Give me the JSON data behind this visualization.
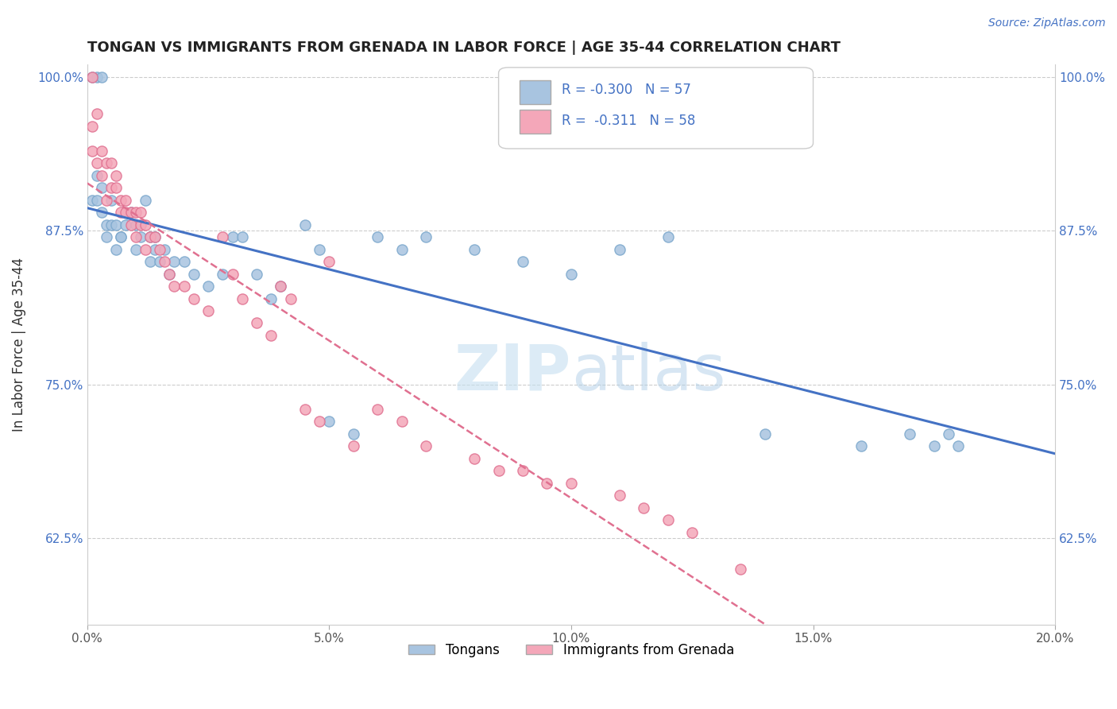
{
  "title": "TONGAN VS IMMIGRANTS FROM GRENADA IN LABOR FORCE | AGE 35-44 CORRELATION CHART",
  "source_text": "Source: ZipAtlas.com",
  "ylabel": "In Labor Force | Age 35-44",
  "xlim": [
    0.0,
    0.2
  ],
  "ylim": [
    0.555,
    1.01
  ],
  "xtick_labels": [
    "0.0%",
    "5.0%",
    "10.0%",
    "15.0%",
    "20.0%"
  ],
  "xtick_vals": [
    0.0,
    0.05,
    0.1,
    0.15,
    0.2
  ],
  "ytick_labels": [
    "62.5%",
    "75.0%",
    "87.5%",
    "100.0%"
  ],
  "ytick_vals": [
    0.625,
    0.75,
    0.875,
    1.0
  ],
  "watermark_zip": "ZIP",
  "watermark_atlas": "atlas",
  "series1_color": "#a8c4e0",
  "series1_edge": "#7ba7cc",
  "series2_color": "#f4a7b9",
  "series2_edge": "#e07090",
  "trendline1_color": "#4472c4",
  "trendline2_color": "#e07090",
  "series1_x": [
    0.002,
    0.003,
    0.001,
    0.001,
    0.002,
    0.003,
    0.004,
    0.002,
    0.003,
    0.004,
    0.005,
    0.005,
    0.006,
    0.007,
    0.006,
    0.007,
    0.008,
    0.009,
    0.01,
    0.01,
    0.011,
    0.012,
    0.013,
    0.014,
    0.013,
    0.014,
    0.015,
    0.016,
    0.017,
    0.018,
    0.02,
    0.022,
    0.025,
    0.028,
    0.03,
    0.032,
    0.035,
    0.038,
    0.04,
    0.045,
    0.048,
    0.05,
    0.055,
    0.06,
    0.065,
    0.07,
    0.08,
    0.09,
    0.1,
    0.11,
    0.12,
    0.14,
    0.16,
    0.17,
    0.175,
    0.178,
    0.18
  ],
  "series1_y": [
    1.0,
    1.0,
    1.0,
    0.9,
    0.92,
    0.91,
    0.88,
    0.9,
    0.89,
    0.87,
    0.88,
    0.9,
    0.88,
    0.87,
    0.86,
    0.87,
    0.88,
    0.89,
    0.88,
    0.86,
    0.87,
    0.9,
    0.87,
    0.86,
    0.85,
    0.87,
    0.85,
    0.86,
    0.84,
    0.85,
    0.85,
    0.84,
    0.83,
    0.84,
    0.87,
    0.87,
    0.84,
    0.82,
    0.83,
    0.88,
    0.86,
    0.72,
    0.71,
    0.87,
    0.86,
    0.87,
    0.86,
    0.85,
    0.84,
    0.86,
    0.87,
    0.71,
    0.7,
    0.71,
    0.7,
    0.71,
    0.7
  ],
  "series2_x": [
    0.001,
    0.001,
    0.001,
    0.002,
    0.002,
    0.003,
    0.003,
    0.004,
    0.004,
    0.005,
    0.005,
    0.006,
    0.006,
    0.007,
    0.007,
    0.008,
    0.008,
    0.009,
    0.009,
    0.01,
    0.01,
    0.011,
    0.011,
    0.012,
    0.012,
    0.013,
    0.014,
    0.015,
    0.016,
    0.017,
    0.018,
    0.02,
    0.022,
    0.025,
    0.028,
    0.03,
    0.032,
    0.035,
    0.038,
    0.04,
    0.042,
    0.045,
    0.048,
    0.05,
    0.055,
    0.06,
    0.065,
    0.07,
    0.08,
    0.085,
    0.09,
    0.095,
    0.1,
    0.11,
    0.115,
    0.12,
    0.125,
    0.135
  ],
  "series2_y": [
    1.0,
    0.96,
    0.94,
    0.93,
    0.97,
    0.94,
    0.92,
    0.9,
    0.93,
    0.91,
    0.93,
    0.92,
    0.91,
    0.9,
    0.89,
    0.89,
    0.9,
    0.88,
    0.89,
    0.89,
    0.87,
    0.88,
    0.89,
    0.88,
    0.86,
    0.87,
    0.87,
    0.86,
    0.85,
    0.84,
    0.83,
    0.83,
    0.82,
    0.81,
    0.87,
    0.84,
    0.82,
    0.8,
    0.79,
    0.83,
    0.82,
    0.73,
    0.72,
    0.85,
    0.7,
    0.73,
    0.72,
    0.7,
    0.69,
    0.68,
    0.68,
    0.67,
    0.67,
    0.66,
    0.65,
    0.64,
    0.63,
    0.6
  ],
  "legend_box_colors": [
    "#a8c4e0",
    "#f4a7b9"
  ],
  "legend_r_vals": [
    "-0.300",
    "-0.311"
  ],
  "legend_n_vals": [
    "57",
    "58"
  ],
  "bottom_legend": [
    "Tongans",
    "Immigrants from Grenada"
  ],
  "bottom_legend_colors": [
    "#a8c4e0",
    "#f4a7b9"
  ]
}
